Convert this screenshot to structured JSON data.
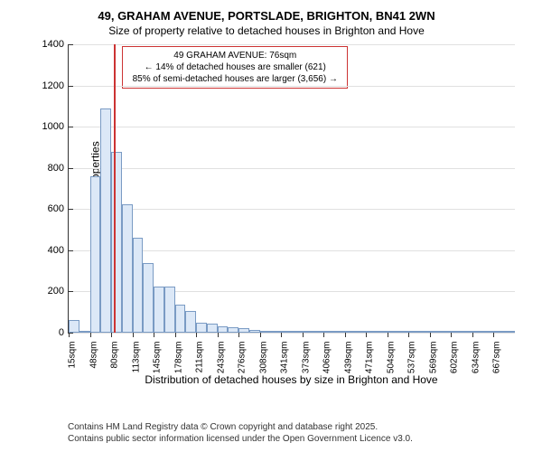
{
  "title": "49, GRAHAM AVENUE, PORTSLADE, BRIGHTON, BN41 2WN",
  "subtitle": "Size of property relative to detached houses in Brighton and Hove",
  "chart": {
    "type": "histogram",
    "ylabel": "Number of detached properties",
    "xlabel": "Distribution of detached houses by size in Brighton and Hove",
    "ylim": [
      0,
      1400
    ],
    "yticks": [
      0,
      200,
      400,
      600,
      800,
      1000,
      1200,
      1400
    ],
    "xticks": [
      "15sqm",
      "48sqm",
      "80sqm",
      "113sqm",
      "145sqm",
      "178sqm",
      "211sqm",
      "243sqm",
      "276sqm",
      "308sqm",
      "341sqm",
      "373sqm",
      "406sqm",
      "439sqm",
      "471sqm",
      "504sqm",
      "537sqm",
      "569sqm",
      "602sqm",
      "634sqm",
      "667sqm"
    ],
    "bars": [
      60,
      0,
      760,
      1090,
      880,
      625,
      460,
      340,
      225,
      225,
      135,
      105,
      50,
      42,
      30,
      28,
      20,
      14,
      10,
      8,
      6,
      5,
      4,
      3,
      3,
      2,
      2,
      2,
      2,
      1,
      1,
      1,
      1,
      1,
      1,
      1,
      1,
      1,
      1,
      1,
      1,
      1
    ],
    "bar_color": "#dce8f7",
    "bar_border": "#7a9bc4",
    "grid_color": "#e0e0e0",
    "marker_color": "#cc3333",
    "marker_position_pct": 10.2,
    "background_color": "#ffffff"
  },
  "annotation": {
    "line1": "49 GRAHAM AVENUE: 76sqm",
    "line2": "← 14% of detached houses are smaller (621)",
    "line3": "85% of semi-detached houses are larger (3,656) →"
  },
  "footer": {
    "line1": "Contains HM Land Registry data © Crown copyright and database right 2025.",
    "line2": "Contains public sector information licensed under the Open Government Licence v3.0."
  }
}
